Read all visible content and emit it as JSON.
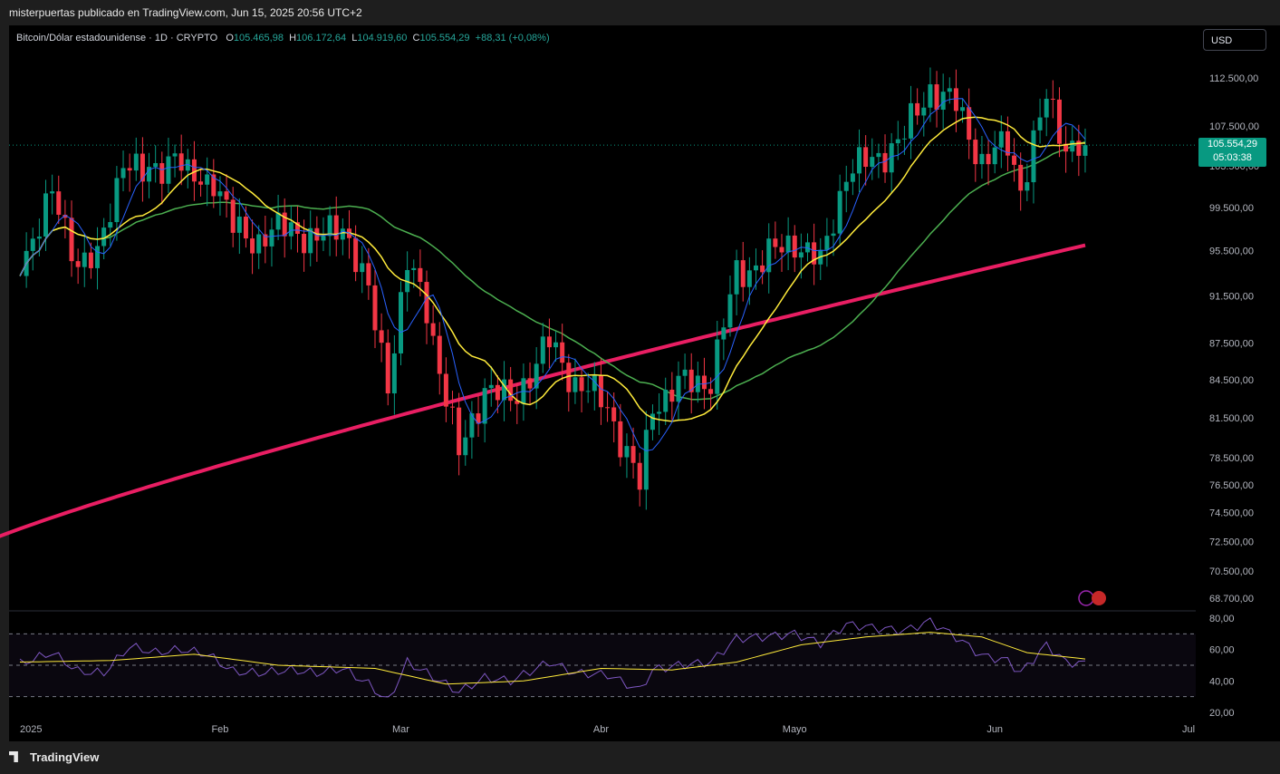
{
  "header": {
    "published_by": "misterpuertas publicado en TradingView.com, Jun 15, 2025 20:56 UTC+2"
  },
  "legend": {
    "symbol": "Bitcoin/Dólar estadounidense · 1D · CRYPTO",
    "o_label": "O",
    "o": "105.465,98",
    "h_label": "H",
    "h": "106.172,64",
    "l_label": "L",
    "l": "104.919,60",
    "c_label": "C",
    "c": "105.554,29",
    "change": "+88,31 (+0,08%)"
  },
  "currency_button": "USD",
  "last_price": {
    "price": "105.554,29",
    "countdown": "05:03:38"
  },
  "footer": {
    "brand": "TradingView"
  },
  "chart_data": [
    {
      "type": "candlestick",
      "price_scale": "log",
      "y_ticks": [
        "112.500,00",
        "107.500,00",
        "103.500,00",
        "99.500,00",
        "95.500,00",
        "91.500,00",
        "87.500,00",
        "84.500,00",
        "81.500,00",
        "78.500,00",
        "76.500,00",
        "74.500,00",
        "72.500,00",
        "70.500,00",
        "68.700,00"
      ],
      "y_tick_values": [
        112500,
        107500,
        103500,
        99500,
        95500,
        91500,
        87500,
        84500,
        81500,
        78500,
        76500,
        74500,
        72500,
        70500,
        68700
      ],
      "x_ticks": [
        "2025",
        "Feb",
        "Mar",
        "Abr",
        "Mayo",
        "Jun",
        "Jul"
      ],
      "x_tick_dates": [
        "2025-01-01",
        "2025-02-01",
        "2025-03-01",
        "2025-04-01",
        "2025-05-01",
        "2025-06-01",
        "2025-07-01"
      ],
      "colors": {
        "up": "#089981",
        "down": "#f23645",
        "ma_fast": "#2962ff",
        "ma_mid": "#ffeb3b",
        "ma_slow": "#4caf50",
        "ma_long": "#e91e63"
      },
      "close_series": [
        {
          "date": "2025-01-01",
          "close": 94500
        },
        {
          "date": "2025-01-06",
          "close": 100500
        },
        {
          "date": "2025-01-10",
          "close": 94700
        },
        {
          "date": "2025-01-13",
          "close": 94500
        },
        {
          "date": "2025-01-17",
          "close": 104500
        },
        {
          "date": "2025-01-20",
          "close": 102200
        },
        {
          "date": "2025-01-25",
          "close": 104800
        },
        {
          "date": "2025-01-27",
          "close": 102100
        },
        {
          "date": "2025-01-31",
          "close": 102400
        },
        {
          "date": "2025-02-03",
          "close": 97500
        },
        {
          "date": "2025-02-07",
          "close": 96500
        },
        {
          "date": "2025-02-12",
          "close": 97800
        },
        {
          "date": "2025-02-16",
          "close": 96200
        },
        {
          "date": "2025-02-20",
          "close": 98200
        },
        {
          "date": "2025-02-24",
          "close": 91500
        },
        {
          "date": "2025-02-27",
          "close": 84500
        },
        {
          "date": "2025-03-02",
          "close": 94200
        },
        {
          "date": "2025-03-05",
          "close": 90500
        },
        {
          "date": "2025-03-10",
          "close": 78600
        },
        {
          "date": "2025-03-14",
          "close": 84000
        },
        {
          "date": "2025-03-18",
          "close": 82700
        },
        {
          "date": "2025-03-24",
          "close": 87500
        },
        {
          "date": "2025-03-28",
          "close": 84300
        },
        {
          "date": "2025-04-02",
          "close": 82500
        },
        {
          "date": "2025-04-07",
          "close": 76300
        },
        {
          "date": "2025-04-09",
          "close": 82600
        },
        {
          "date": "2025-04-13",
          "close": 84000
        },
        {
          "date": "2025-04-18",
          "close": 84600
        },
        {
          "date": "2025-04-22",
          "close": 93400
        },
        {
          "date": "2025-04-26",
          "close": 94600
        },
        {
          "date": "2025-05-01",
          "close": 96500
        },
        {
          "date": "2025-05-05",
          "close": 94200
        },
        {
          "date": "2025-05-09",
          "close": 103000
        },
        {
          "date": "2025-05-13",
          "close": 103900
        },
        {
          "date": "2025-05-18",
          "close": 106500
        },
        {
          "date": "2025-05-22",
          "close": 111500
        },
        {
          "date": "2025-05-26",
          "close": 109500
        },
        {
          "date": "2025-05-30",
          "close": 104000
        },
        {
          "date": "2025-06-03",
          "close": 105500
        },
        {
          "date": "2025-06-05",
          "close": 101500
        },
        {
          "date": "2025-06-09",
          "close": 110200
        },
        {
          "date": "2025-06-12",
          "close": 105700
        },
        {
          "date": "2025-06-15",
          "close": 105554.29
        }
      ],
      "moving_averages": {
        "ma_fast_end": 105900,
        "ma_mid_end": 105300,
        "ma_slow_end": 102700,
        "ma_long_end": 96000
      }
    },
    {
      "type": "line",
      "name": "RSI",
      "y_ticks": [
        "80,00",
        "60,00",
        "40,00",
        "20,00"
      ],
      "y_tick_values": [
        80,
        60,
        40,
        20
      ],
      "bands": [
        30,
        50,
        70
      ],
      "rsi": [
        {
          "date": "2025-01-01",
          "v": 51
        },
        {
          "date": "2025-01-06",
          "v": 58
        },
        {
          "date": "2025-01-10",
          "v": 46
        },
        {
          "date": "2025-01-14",
          "v": 45
        },
        {
          "date": "2025-01-18",
          "v": 62
        },
        {
          "date": "2025-01-22",
          "v": 58
        },
        {
          "date": "2025-01-26",
          "v": 60
        },
        {
          "date": "2025-01-30",
          "v": 57
        },
        {
          "date": "2025-02-03",
          "v": 46
        },
        {
          "date": "2025-02-07",
          "v": 45
        },
        {
          "date": "2025-02-12",
          "v": 47
        },
        {
          "date": "2025-02-16",
          "v": 45
        },
        {
          "date": "2025-02-20",
          "v": 48
        },
        {
          "date": "2025-02-24",
          "v": 38
        },
        {
          "date": "2025-02-27",
          "v": 27
        },
        {
          "date": "2025-03-02",
          "v": 52
        },
        {
          "date": "2025-03-05",
          "v": 45
        },
        {
          "date": "2025-03-10",
          "v": 33
        },
        {
          "date": "2025-03-14",
          "v": 42
        },
        {
          "date": "2025-03-18",
          "v": 40
        },
        {
          "date": "2025-03-24",
          "v": 52
        },
        {
          "date": "2025-03-28",
          "v": 45
        },
        {
          "date": "2025-04-02",
          "v": 44
        },
        {
          "date": "2025-04-07",
          "v": 34
        },
        {
          "date": "2025-04-09",
          "v": 47
        },
        {
          "date": "2025-04-13",
          "v": 50
        },
        {
          "date": "2025-04-18",
          "v": 52
        },
        {
          "date": "2025-04-22",
          "v": 67
        },
        {
          "date": "2025-04-26",
          "v": 68
        },
        {
          "date": "2025-05-01",
          "v": 70
        },
        {
          "date": "2025-05-05",
          "v": 64
        },
        {
          "date": "2025-05-09",
          "v": 76
        },
        {
          "date": "2025-05-13",
          "v": 74
        },
        {
          "date": "2025-05-18",
          "v": 72
        },
        {
          "date": "2025-05-22",
          "v": 78
        },
        {
          "date": "2025-05-26",
          "v": 68
        },
        {
          "date": "2025-05-30",
          "v": 56
        },
        {
          "date": "2025-06-03",
          "v": 53
        },
        {
          "date": "2025-06-05",
          "v": 45
        },
        {
          "date": "2025-06-09",
          "v": 63
        },
        {
          "date": "2025-06-12",
          "v": 52
        },
        {
          "date": "2025-06-15",
          "v": 51
        }
      ],
      "rsi_ma": [
        {
          "date": "2025-01-01",
          "v": 52
        },
        {
          "date": "2025-01-15",
          "v": 53
        },
        {
          "date": "2025-01-28",
          "v": 57
        },
        {
          "date": "2025-02-10",
          "v": 50
        },
        {
          "date": "2025-02-25",
          "v": 48
        },
        {
          "date": "2025-03-08",
          "v": 38
        },
        {
          "date": "2025-03-20",
          "v": 40
        },
        {
          "date": "2025-04-01",
          "v": 48
        },
        {
          "date": "2025-04-12",
          "v": 47
        },
        {
          "date": "2025-04-22",
          "v": 52
        },
        {
          "date": "2025-05-02",
          "v": 63
        },
        {
          "date": "2025-05-12",
          "v": 68
        },
        {
          "date": "2025-05-22",
          "v": 71
        },
        {
          "date": "2025-05-30",
          "v": 68
        },
        {
          "date": "2025-06-06",
          "v": 58
        },
        {
          "date": "2025-06-15",
          "v": 54
        }
      ],
      "colors": {
        "rsi": "#7e57c2",
        "rsi_ma": "#ffeb3b"
      }
    }
  ]
}
